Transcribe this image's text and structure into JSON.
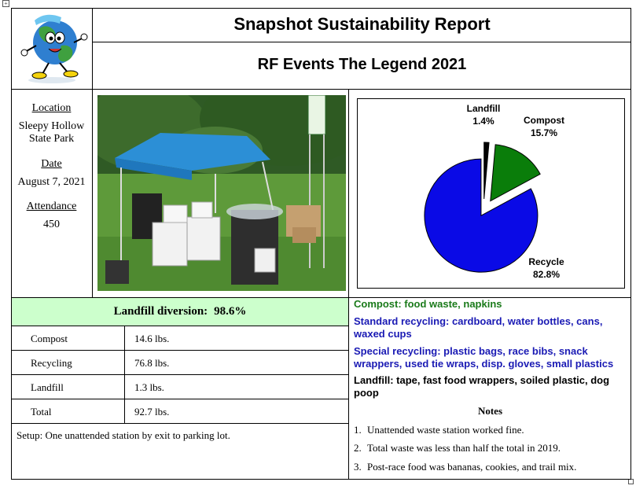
{
  "header": {
    "title": "Snapshot Sustainability Report",
    "subtitle": "RF Events The Legend 2021"
  },
  "event": {
    "location_label": "Location",
    "location_line1": "Sleepy Hollow",
    "location_line2": "State Park",
    "date_label": "Date",
    "date_value": "August 7, 2021",
    "attendance_label": "Attendance",
    "attendance_value": "450"
  },
  "diversion": {
    "label": "Landfill diversion:",
    "value": "98.6%"
  },
  "waste_table": {
    "rows": [
      {
        "category": "Compost",
        "amount": "14.6 lbs."
      },
      {
        "category": "Recycling",
        "amount": "76.8 lbs."
      },
      {
        "category": "Landfill",
        "amount": "1.3 lbs."
      },
      {
        "category": "Total",
        "amount": "92.7 lbs."
      }
    ]
  },
  "setup_text": "Setup: One unattended station by exit to parking lot.",
  "chart_data": {
    "type": "pie",
    "title": "",
    "slices": [
      {
        "label": "Landfill",
        "percent_label": "1.4%",
        "value": 1.4,
        "color": "#000000"
      },
      {
        "label": "Compost",
        "percent_label": "15.7%",
        "value": 15.7,
        "color": "#0a7d0a"
      },
      {
        "label": "Recycle",
        "percent_label": "82.8%",
        "value": 82.8,
        "color": "#0a0ae6"
      }
    ]
  },
  "categories": {
    "compost": "Compost: food waste, napkins",
    "standard_line1": "Standard recycling: cardboard, water bottles, cans,",
    "standard_line2": "waxed cups",
    "special_line1": "Special recycling: plastic bags, race bibs, snack",
    "special_line2": "wrappers, used tie wraps, disp. gloves, small plastics",
    "landfill_line1": "Landfill: tape, fast food wrappers, soiled plastic, dog",
    "landfill_line2": "poop"
  },
  "colors": {
    "compost_text": "#1a7a1a",
    "recycle_text": "#1a1ab4",
    "diversion_bg": "#ccffcc"
  },
  "notes": {
    "heading": "Notes",
    "items": [
      {
        "num": "1.",
        "text": "Unattended waste station worked fine."
      },
      {
        "num": "2.",
        "text": "Total waste was less than half the total in 2019."
      },
      {
        "num": "3.",
        "text": "Post-race food was bananas, cookies, and trail mix."
      }
    ]
  }
}
